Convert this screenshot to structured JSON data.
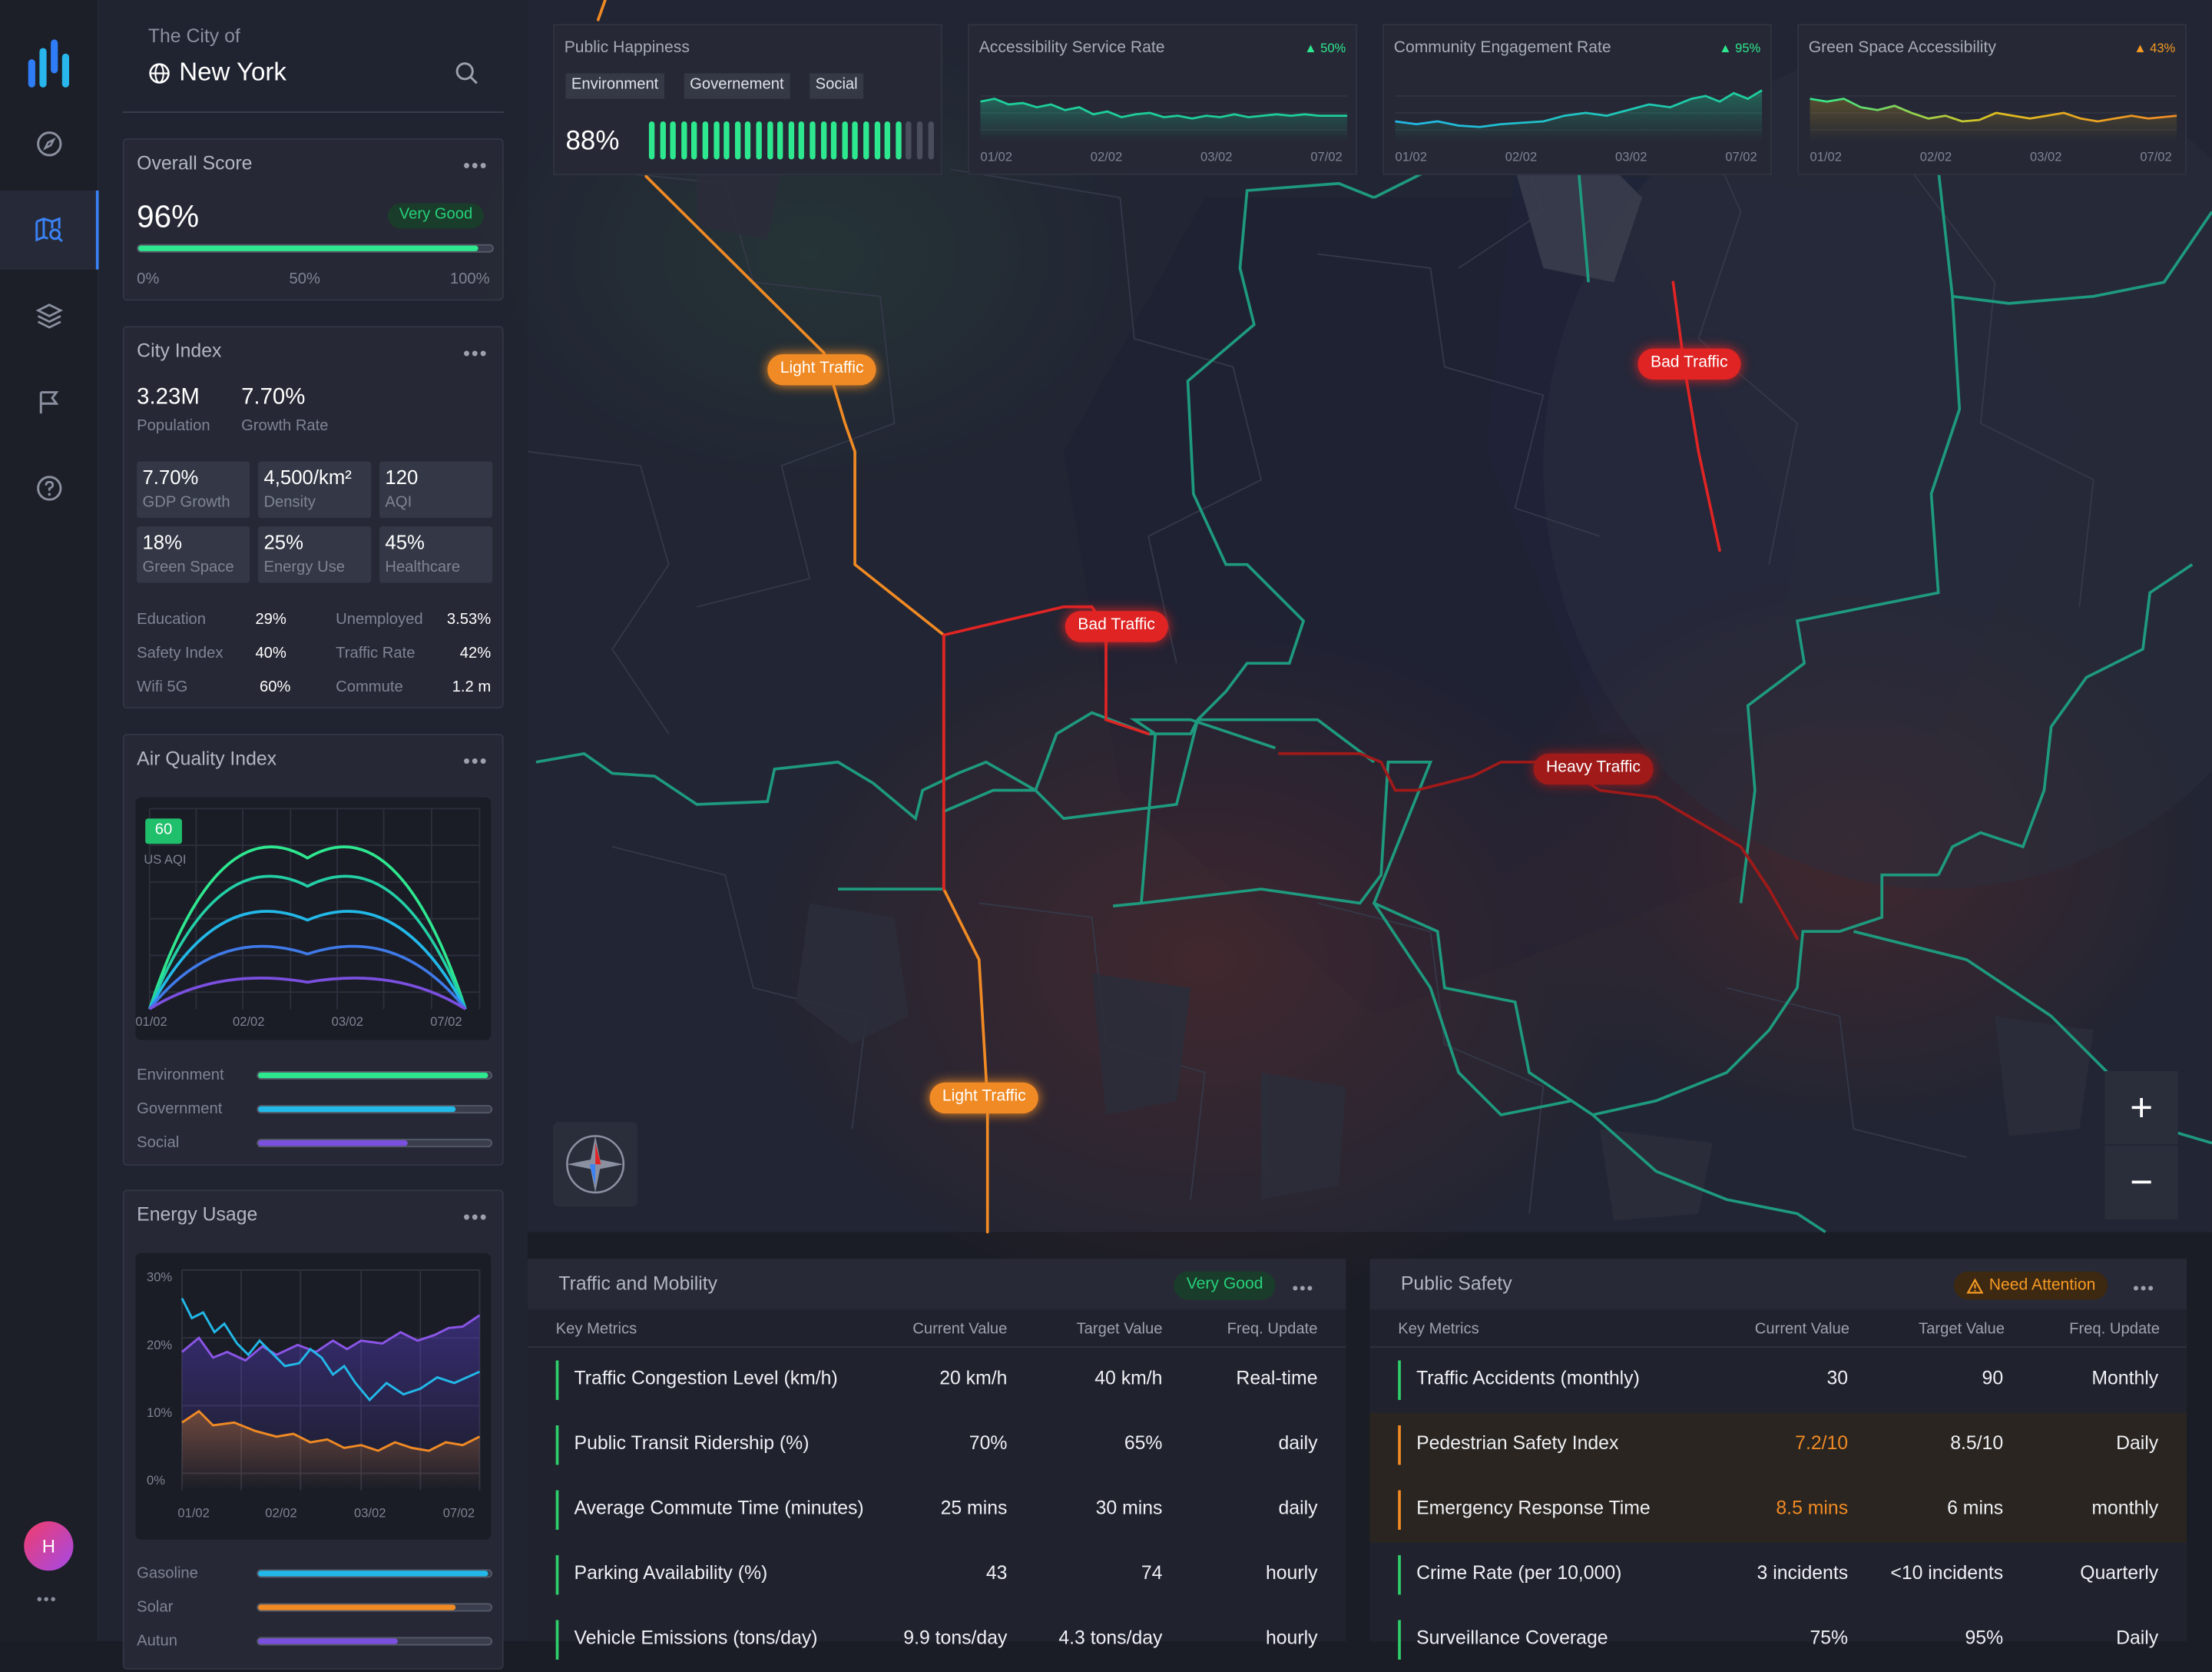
{
  "brand": {
    "logo_icon": "city-analytics-logo"
  },
  "nav": [
    {
      "name": "compass-icon"
    },
    {
      "name": "map-search-icon",
      "active": true
    },
    {
      "name": "layers-icon"
    },
    {
      "name": "flag-icon"
    },
    {
      "name": "help-icon"
    }
  ],
  "user": {
    "avatar": "H",
    "more": "•••"
  },
  "city": {
    "subtitle": "The City of",
    "name": "New York",
    "search_icon": "search-icon"
  },
  "overall": {
    "title": "Overall Score",
    "value": "96%",
    "badge": "Very Good",
    "progress": 0.96,
    "ticks": [
      "0%",
      "50%",
      "100%"
    ]
  },
  "city_index": {
    "title": "City Index",
    "population": "3.23M",
    "population_label": "Population",
    "growth": "7.70%",
    "growth_label": "Growth Rate",
    "cells": [
      {
        "v": "7.70%",
        "l": "GDP Growth"
      },
      {
        "v": "4,500/km²",
        "l": "Density"
      },
      {
        "v": "120",
        "l": "AQI"
      },
      {
        "v": "18%",
        "l": "Green Space"
      },
      {
        "v": "25%",
        "l": "Energy Use"
      },
      {
        "v": "45%",
        "l": "Healthcare"
      }
    ],
    "pairs": [
      {
        "k": "Education",
        "v": "29%",
        "k2": "Unemployed",
        "v2": "3.53%"
      },
      {
        "k": "Safety Index",
        "v": "40%",
        "k2": "Traffic Rate",
        "v2": "42%"
      },
      {
        "k": "Wifi 5G",
        "v": "60%",
        "k2": "Commute",
        "v2": "1.2 m"
      }
    ]
  },
  "aqi": {
    "title": "Air Quality Index",
    "value": "60",
    "unit": "US AQI",
    "x_ticks": [
      "01/02",
      "02/02",
      "03/02",
      "07/02"
    ],
    "bars": [
      {
        "label": "Environment",
        "value": 0.99,
        "color": "#2ee88f"
      },
      {
        "label": "Government",
        "value": 0.85,
        "color": "#22b8e8"
      },
      {
        "label": "Social",
        "value": 0.64,
        "color": "#7b4fe0"
      }
    ]
  },
  "energy": {
    "title": "Energy Usage",
    "y_ticks": [
      "30%",
      "20%",
      "10%",
      "0%"
    ],
    "x_ticks": [
      "01/02",
      "02/02",
      "03/02",
      "07/02"
    ],
    "bars": [
      {
        "label": "Gasoline",
        "value": 0.99,
        "color": "#22b8e8"
      },
      {
        "label": "Solar",
        "value": 0.85,
        "color": "#f08a24"
      },
      {
        "label": "Autun",
        "value": 0.6,
        "color": "#7b4fe0"
      }
    ]
  },
  "kpis": [
    {
      "title": "Public Happiness",
      "value": "88%",
      "tags": [
        "Environment",
        "Governement",
        "Social"
      ],
      "filled": 24,
      "total": 27
    },
    {
      "title": "Accessibility Service Rate",
      "badge": "▲ 50%",
      "badge_color": "#2ee88f",
      "x_ticks": [
        "01/02",
        "02/02",
        "03/02",
        "07/02"
      ]
    },
    {
      "title": "Community Engagement Rate",
      "badge": "▲ 95%",
      "badge_color": "#2ee88f",
      "x_ticks": [
        "01/02",
        "02/02",
        "03/02",
        "07/02"
      ]
    },
    {
      "title": "Green Space Accessibility",
      "badge": "▲ 43%",
      "badge_color": "#f59a23",
      "x_ticks": [
        "01/02",
        "02/02",
        "03/02",
        "07/02"
      ]
    }
  ],
  "traffic_labels": [
    {
      "text": "Light Traffic",
      "color": "#f08a24"
    },
    {
      "text": "Bad Traffic",
      "color": "#e02424"
    },
    {
      "text": "Bad Traffic",
      "color": "#e02424"
    },
    {
      "text": "Heavy Traffic",
      "color": "#a01a1a"
    },
    {
      "text": "Light Traffic",
      "color": "#f08a24"
    }
  ],
  "zoom": {
    "in": "+",
    "out": "−"
  },
  "traffic_table": {
    "title": "Traffic and Mobility",
    "status": "Very Good",
    "headers": [
      "Key Metrics",
      "Current Value",
      "Target Value",
      "Freq. Update"
    ],
    "rows": [
      {
        "metric": "Traffic Congestion Level (km/h)",
        "current": "20 km/h",
        "target": "40 km/h",
        "freq": "Real-time"
      },
      {
        "metric": "Public Transit Ridership (%)",
        "current": "70%",
        "target": "65%",
        "freq": "daily"
      },
      {
        "metric": "Average Commute Time (minutes)",
        "current": "25 mins",
        "target": "30 mins",
        "freq": "daily"
      },
      {
        "metric": "Parking Availability (%)",
        "current": "43",
        "target": "74",
        "freq": "hourly"
      },
      {
        "metric": "Vehicle Emissions (tons/day)",
        "current": "9.9 tons/day",
        "target": "4.3 tons/day",
        "freq": "hourly"
      }
    ]
  },
  "safety_table": {
    "title": "Public Safety",
    "status": "Need Attention",
    "headers": [
      "Key Metrics",
      "Current Value",
      "Target Value",
      "Freq. Update"
    ],
    "rows": [
      {
        "metric": "Traffic Accidents (monthly)",
        "current": "30",
        "target": "90",
        "freq": "Monthly"
      },
      {
        "metric": "Pedestrian Safety Index",
        "current": "7.2/10",
        "target": "8.5/10",
        "freq": "Daily",
        "warn": true
      },
      {
        "metric": "Emergency Response Time",
        "current": "8.5 mins",
        "target": "6 mins",
        "freq": "monthly",
        "warn": true
      },
      {
        "metric": "Crime Rate (per 10,000)",
        "current": "3 incidents",
        "target": "<10 incidents",
        "freq": "Quarterly"
      },
      {
        "metric": "Surveillance Coverage",
        "current": "75%",
        "target": "95%",
        "freq": "Daily"
      }
    ]
  }
}
